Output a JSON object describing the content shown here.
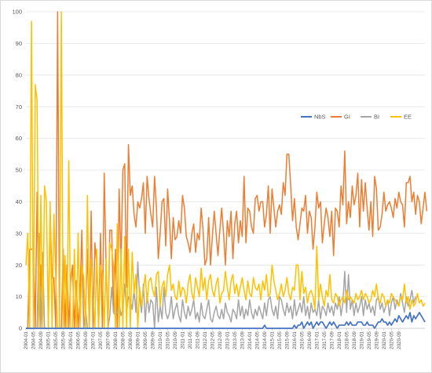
{
  "chart_data": {
    "type": "line",
    "title": "",
    "xlabel": "",
    "ylabel": "",
    "ylim": [
      0,
      100
    ],
    "yticks": [
      0,
      10,
      20,
      30,
      40,
      50,
      60,
      70,
      80,
      90,
      100
    ],
    "grid": "horizontal",
    "legend_position": "right, inside plot area",
    "x_tick_labels": [
      "2004-01",
      "2004-05",
      "2004-09",
      "2005-01",
      "2005-05",
      "2005-09",
      "2006-01",
      "2006-05",
      "2006-09",
      "2007-01",
      "2007-05",
      "2007-09",
      "2008-01",
      "2008-05",
      "2008-09",
      "2009-01",
      "2009-05",
      "2009-09",
      "2010-01",
      "2010-05",
      "2010-09",
      "2011-01",
      "2011-05",
      "2011-09",
      "2012-01",
      "2012-05",
      "2012-09",
      "2013-01",
      "2013-05",
      "2013-09",
      "2014-01",
      "2014-05",
      "2014-09",
      "2015-01",
      "2015-05",
      "2015-09",
      "2016-01",
      "2016-05",
      "2016-09",
      "2017-01",
      "2017-05",
      "2017-09",
      "2018-01",
      "2018-05",
      "2018-09",
      "2019-01",
      "2019-05",
      "2019-09",
      "2020-01",
      "2020-05",
      "2020-09"
    ],
    "x_start": "2004-01",
    "x_step": "1 month",
    "series": [
      {
        "name": "NbS",
        "color": "#4472c4",
        "values": [
          0,
          0,
          0,
          0,
          0,
          0,
          0,
          0,
          0,
          0,
          0,
          0,
          0,
          0,
          0,
          0,
          0,
          0,
          0,
          0,
          0,
          0,
          0,
          0,
          0,
          0,
          0,
          0,
          0,
          0,
          0,
          0,
          0,
          0,
          0,
          0,
          0,
          0,
          0,
          0,
          0,
          0,
          0,
          0,
          0,
          0,
          0,
          0,
          0,
          0,
          0,
          0,
          0,
          0,
          0,
          0,
          0,
          0,
          0,
          0,
          0,
          0,
          0,
          0,
          0,
          0,
          0,
          0,
          0,
          0,
          0,
          0,
          0,
          0,
          0,
          0,
          0,
          0,
          0,
          0,
          0,
          0,
          0,
          0,
          0,
          0,
          0,
          0,
          0,
          0,
          0,
          0,
          0,
          0,
          0,
          0,
          0,
          0,
          0,
          0,
          0,
          0,
          0,
          0,
          0,
          0,
          0,
          0,
          0,
          0,
          0,
          0,
          0,
          0,
          0,
          0,
          0,
          0,
          0,
          0,
          0,
          0,
          0,
          0,
          0,
          0,
          0,
          0,
          1,
          0,
          0,
          0,
          0,
          0,
          0,
          0,
          0,
          0,
          0,
          0,
          0,
          0,
          0,
          0,
          1,
          0,
          1,
          1,
          2,
          0,
          1,
          2,
          1,
          2,
          0,
          1,
          2,
          1,
          2,
          2,
          1,
          0,
          1,
          2,
          1,
          2,
          1,
          0,
          1,
          1,
          1,
          1,
          2,
          1,
          2,
          1,
          1,
          1,
          2,
          2,
          2,
          1,
          1,
          2,
          1,
          1,
          1,
          0,
          1,
          2,
          2,
          3,
          2,
          2,
          1,
          2,
          1,
          2,
          3,
          2,
          4,
          3,
          2,
          3,
          4,
          3,
          5,
          2,
          4,
          3,
          4,
          5,
          4,
          3,
          2
        ]
      },
      {
        "name": "GI",
        "color": "#ed7d31",
        "values": [
          0,
          0,
          25,
          25,
          25,
          0,
          43,
          0,
          20,
          0,
          0,
          0,
          0,
          36,
          16,
          16,
          0,
          100,
          0,
          0,
          25,
          0,
          20,
          0,
          15,
          20,
          0,
          15,
          0,
          10,
          31,
          0,
          5,
          25,
          0,
          37,
          0,
          27,
          20,
          0,
          30,
          0,
          49,
          20,
          0,
          31,
          31,
          5,
          25,
          0,
          44,
          20,
          50,
          52,
          13,
          58,
          42,
          45,
          36,
          32,
          40,
          38,
          41,
          46,
          30,
          48,
          41,
          36,
          32,
          48,
          38,
          22,
          30,
          40,
          41,
          26,
          44,
          34,
          22,
          35,
          28,
          29,
          34,
          30,
          42,
          38,
          29,
          27,
          24,
          30,
          33,
          24,
          30,
          28,
          38,
          31,
          20,
          22,
          35,
          20,
          29,
          37,
          30,
          23,
          31,
          38,
          30,
          20,
          34,
          29,
          37,
          22,
          33,
          37,
          27,
          34,
          29,
          48,
          27,
          38,
          37,
          32,
          30,
          41,
          42,
          37,
          40,
          40,
          32,
          36,
          45,
          30,
          44,
          38,
          32,
          37,
          39,
          36,
          46,
          42,
          55,
          55,
          45,
          34,
          41,
          32,
          28,
          33,
          38,
          37,
          42,
          30,
          37,
          35,
          25,
          32,
          43,
          38,
          40,
          27,
          33,
          38,
          35,
          29,
          37,
          23,
          38,
          37,
          32,
          45,
          39,
          56,
          33,
          40,
          35,
          45,
          39,
          42,
          49,
          32,
          47,
          37,
          46,
          38,
          31,
          40,
          29,
          48,
          44,
          31,
          32,
          36,
          43,
          37,
          39,
          40,
          38,
          35,
          41,
          38,
          43,
          40,
          39,
          32,
          46,
          46,
          48,
          40,
          43,
          36,
          42,
          40,
          33,
          38,
          43,
          37
        ]
      },
      {
        "name": "BI",
        "color": "#a5a5a5",
        "values": [
          0,
          0,
          0,
          0,
          0,
          0,
          0,
          30,
          0,
          24,
          0,
          0,
          0,
          0,
          0,
          0,
          0,
          0,
          0,
          0,
          0,
          0,
          0,
          0,
          0,
          0,
          0,
          0,
          0,
          0,
          0,
          0,
          6,
          0,
          0,
          0,
          0,
          0,
          0,
          0,
          0,
          0,
          0,
          0,
          0,
          4,
          13,
          5,
          4,
          5,
          8,
          4,
          6,
          14,
          5,
          10,
          9,
          6,
          12,
          5,
          21,
          10,
          5,
          14,
          2,
          11,
          5,
          9,
          8,
          0,
          13,
          2,
          7,
          3,
          13,
          5,
          3,
          5,
          10,
          3,
          6,
          8,
          4,
          2,
          9,
          5,
          3,
          7,
          4,
          6,
          9,
          3,
          5,
          2,
          8,
          4,
          3,
          6,
          9,
          3,
          2,
          5,
          7,
          4,
          3,
          6,
          3,
          8,
          5,
          4,
          2,
          6,
          5,
          3,
          9,
          4,
          7,
          3,
          6,
          4,
          9,
          5,
          3,
          6,
          4,
          7,
          5,
          3,
          8,
          4,
          9,
          10,
          6,
          4,
          7,
          3,
          10,
          9,
          6,
          4,
          8,
          5,
          7,
          3,
          9,
          4,
          6,
          8,
          5,
          10,
          4,
          7,
          3,
          8,
          5,
          6,
          4,
          9,
          3,
          7,
          6,
          4,
          8,
          5,
          7,
          4,
          8,
          6,
          10,
          4,
          8,
          18,
          5,
          17,
          6,
          9,
          4,
          8,
          5,
          7,
          10,
          4,
          9,
          6,
          8,
          5,
          7,
          4,
          9,
          10,
          6,
          8,
          5,
          7,
          9,
          4,
          8,
          10,
          6,
          9,
          7,
          11,
          8,
          5,
          10,
          7,
          9,
          12,
          8,
          10
        ]
      },
      {
        "name": "EE",
        "color": "#ffc000",
        "values": [
          20,
          30,
          0,
          97,
          0,
          77,
          72,
          0,
          42,
          0,
          45,
          40,
          0,
          40,
          0,
          36,
          16,
          0,
          0,
          100,
          0,
          23,
          0,
          53,
          0,
          0,
          25,
          0,
          30,
          0,
          20,
          16,
          0,
          42,
          0,
          22,
          10,
          0,
          25,
          0,
          20,
          17,
          0,
          22,
          0,
          27,
          25,
          20,
          0,
          33,
          0,
          25,
          0,
          29,
          0,
          25,
          0,
          24,
          11,
          17,
          0,
          13,
          7,
          12,
          17,
          8,
          15,
          16,
          12,
          10,
          17,
          18,
          7,
          13,
          15,
          10,
          17,
          20,
          12,
          14,
          10,
          9,
          15,
          10,
          13,
          12,
          8,
          14,
          17,
          11,
          9,
          16,
          13,
          10,
          19,
          12,
          16,
          9,
          15,
          17,
          12,
          10,
          14,
          16,
          8,
          11,
          12,
          18,
          13,
          9,
          15,
          17,
          11,
          14,
          10,
          13,
          16,
          12,
          9,
          15,
          11,
          10,
          16,
          13,
          12,
          14,
          9,
          15,
          12,
          17,
          10,
          11,
          20,
          15,
          12,
          9,
          11,
          14,
          10,
          12,
          16,
          11,
          9,
          13,
          12,
          20,
          20,
          9,
          18,
          11,
          13,
          8,
          11,
          12,
          10,
          6,
          26,
          9,
          14,
          10,
          7,
          12,
          10,
          17,
          9,
          8,
          11,
          10,
          7,
          9,
          10,
          8,
          12,
          9,
          10,
          9,
          8,
          11,
          9,
          10,
          12,
          9,
          11,
          10,
          8,
          9,
          12,
          10,
          14,
          9,
          8,
          11,
          10,
          7,
          9,
          8,
          11,
          10,
          9,
          8,
          7,
          10,
          9,
          14,
          8,
          10,
          6,
          9,
          7,
          8,
          11,
          8,
          9,
          7,
          8
        ]
      }
    ]
  }
}
